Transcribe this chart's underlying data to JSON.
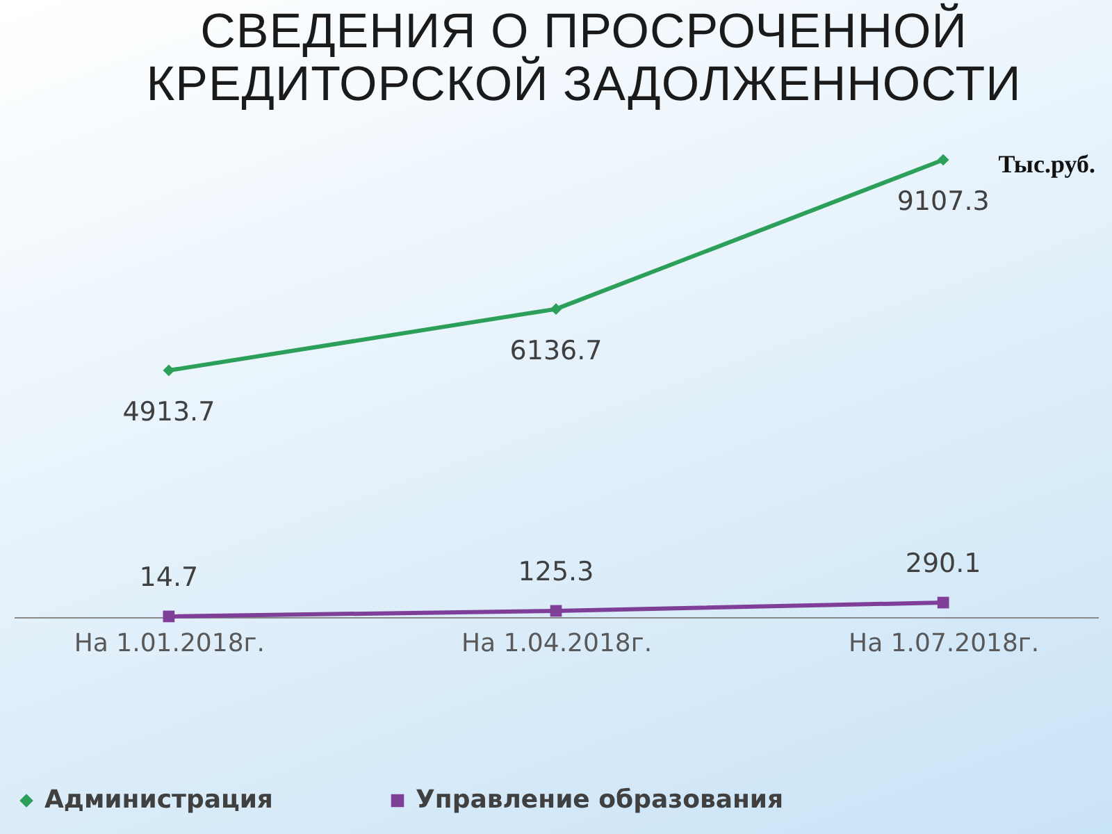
{
  "chart_data": {
    "type": "line",
    "title": "СВЕДЕНИЯ О ПРОСРОЧЕННОЙ КРЕДИТОРСКОЙ ЗАДОЛЖЕННОСТИ",
    "annotations": [
      "Тыс.руб."
    ],
    "categories": [
      "На 1.01.2018г.",
      "На 1.04.2018г.",
      "На 1.07.2018г."
    ],
    "series": [
      {
        "name": "Администрация",
        "color": "#2ca05a",
        "marker": "diamond",
        "values": [
          4913.7,
          6136.7,
          9107.3
        ]
      },
      {
        "name": "Управление образования",
        "color": "#7f3f98",
        "marker": "square",
        "values": [
          14.7,
          125.3,
          290.1
        ]
      }
    ],
    "data_labels": true,
    "legend": "bottom",
    "grid": false
  }
}
